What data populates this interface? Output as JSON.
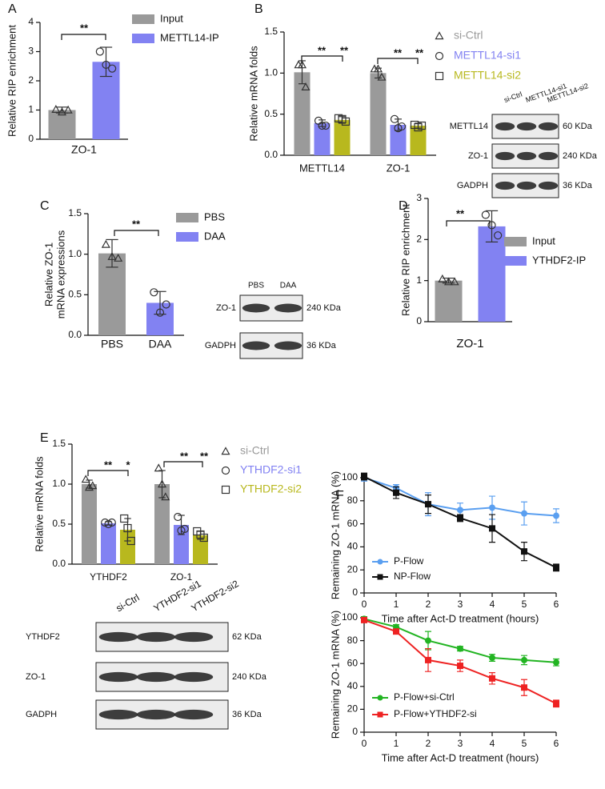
{
  "chart_data": [
    {
      "type": "bar",
      "panel": "A",
      "ylabel": "Relative RIP enrichment",
      "categories": [
        "ZO-1"
      ],
      "series": [
        {
          "name": "Input",
          "color": "#9a9a9a",
          "marker": "triangle",
          "values": [
            1.0
          ],
          "errors": [
            0.1
          ],
          "points": [
            [
              1.02,
              0.93,
              1.0
            ]
          ]
        },
        {
          "name": "METTL14-IP",
          "color": "#8282f2",
          "marker": "circle",
          "values": [
            2.65
          ],
          "errors": [
            0.5
          ],
          "points": [
            [
              3.0,
              2.55,
              2.42
            ]
          ]
        }
      ],
      "ylim": [
        0,
        4
      ],
      "yticks": [
        0,
        1,
        2,
        3,
        4
      ],
      "legend_style": "swatch",
      "significance": [
        "**"
      ]
    },
    {
      "type": "bar",
      "panel": "B",
      "ylabel": "Relative mRNA folds",
      "categories": [
        "METTL14",
        "ZO-1"
      ],
      "series": [
        {
          "name": "si-Ctrl",
          "color": "#9a9a9a",
          "marker": "triangle",
          "values": [
            1.01,
            1.0
          ],
          "errors": [
            0.14,
            0.06
          ],
          "points": [
            [
              1.1,
              1.1,
              0.83
            ],
            [
              1.05,
              1.05,
              0.95
            ]
          ]
        },
        {
          "name": "METTL14-si1",
          "color": "#8282f2",
          "marker": "circle",
          "values": [
            0.39,
            0.37
          ],
          "errors": [
            0.04,
            0.07
          ],
          "points": [
            [
              0.42,
              0.36,
              0.36
            ],
            [
              0.44,
              0.33,
              0.35
            ]
          ]
        },
        {
          "name": "METTL14-si2",
          "color": "#b8b81e",
          "marker": "square",
          "values": [
            0.43,
            0.36
          ],
          "errors": [
            0.04,
            0.03
          ],
          "points": [
            [
              0.45,
              0.44,
              0.41
            ],
            [
              0.37,
              0.34,
              0.36
            ]
          ]
        }
      ],
      "ylim": [
        0,
        1.5
      ],
      "yticks": [
        {
          "value": 0,
          "label": "0.0"
        },
        0.5,
        {
          "value": 1,
          "label": "1.0"
        },
        1.5
      ],
      "legend_style": "marker",
      "significance": [
        "**",
        "**",
        "**",
        "**"
      ],
      "blot": {
        "lanes": [
          "si-Ctrl",
          "METTL14-si1",
          "METTL14-si2"
        ],
        "rows": [
          {
            "label": "METTL14",
            "size": "60 KDa"
          },
          {
            "label": "ZO-1",
            "size": "240 KDa"
          },
          {
            "label": "GADPH",
            "size": "36 KDa"
          }
        ]
      }
    },
    {
      "type": "bar",
      "panel": "C",
      "ylabel": [
        "Relative ZO-1",
        "mRNA expressions"
      ],
      "categories": [
        "PBS",
        "DAA"
      ],
      "values": [
        1.01,
        0.4
      ],
      "errors": [
        0.17,
        0.14
      ],
      "points": [
        [
          1.12,
          0.97,
          0.95
        ],
        [
          0.53,
          0.28,
          0.38
        ]
      ],
      "colors": [
        "#9a9a9a",
        "#8282f2"
      ],
      "markers": [
        "triangle",
        "circle"
      ],
      "ylim": [
        0,
        1.5
      ],
      "yticks": [
        {
          "value": 0,
          "label": "0.0"
        },
        0.5,
        {
          "value": 1,
          "label": "1.0"
        },
        1.5
      ],
      "legend_style": "swatch",
      "significance": [
        "**"
      ],
      "blot": {
        "lanes": [
          "PBS",
          "DAA"
        ],
        "rows": [
          {
            "label": "ZO-1",
            "size": "240 KDa"
          },
          {
            "label": "GADPH",
            "size": "36 KDa"
          }
        ]
      }
    },
    {
      "type": "bar",
      "panel": "D",
      "ylabel": "Relative RIP enrichment",
      "categories": [
        "ZO-1"
      ],
      "series": [
        {
          "name": "Input",
          "color": "#9a9a9a",
          "marker": "triangle",
          "values": [
            1.0
          ],
          "errors": [
            0.06
          ],
          "points": [
            [
              1.04,
              0.97,
              0.97
            ]
          ]
        },
        {
          "name": "YTHDF2-IP",
          "color": "#8282f2",
          "marker": "circle",
          "values": [
            2.32
          ],
          "errors": [
            0.38
          ],
          "points": [
            [
              2.6,
              2.35,
              2.1
            ]
          ]
        }
      ],
      "ylim": [
        0,
        3
      ],
      "yticks": [
        0,
        1,
        2,
        3
      ],
      "legend_style": "swatch",
      "significance": [
        "**"
      ]
    },
    {
      "type": "bar",
      "panel": "E",
      "ylabel": "Relative mRNA folds",
      "categories": [
        "YTHDF2",
        "ZO-1"
      ],
      "series": [
        {
          "name": "si-Ctrl",
          "color": "#9a9a9a",
          "marker": "triangle",
          "values": [
            1.0,
            1.0
          ],
          "errors": [
            0.05,
            0.17
          ],
          "points": [
            [
              1.06,
              0.96,
              0.98
            ],
            [
              1.2,
              1.0,
              0.84
            ]
          ]
        },
        {
          "name": "YTHDF2-si1",
          "color": "#8282f2",
          "marker": "circle",
          "values": [
            0.51,
            0.49
          ],
          "errors": [
            0.02,
            0.12
          ],
          "points": [
            [
              0.52,
              0.5,
              0.52
            ],
            [
              0.59,
              0.42,
              0.44
            ]
          ]
        },
        {
          "name": "YTHDF2-si2",
          "color": "#b8b81e",
          "marker": "square",
          "values": [
            0.43,
            0.36
          ],
          "errors": [
            0.14,
            0.05
          ],
          "points": [
            [
              0.57,
              0.45,
              0.29
            ],
            [
              0.41,
              0.37,
              0.33
            ]
          ]
        }
      ],
      "ylim": [
        0,
        1.5
      ],
      "yticks": [
        {
          "value": 0,
          "label": "0.0"
        },
        0.5,
        {
          "value": 1,
          "label": "1.0"
        },
        1.5
      ],
      "legend_style": "marker",
      "significance": [
        "**",
        "*",
        "**",
        "**"
      ],
      "blot": {
        "lanes": [
          "si-Ctrl",
          "YTHDF2-si1",
          "YTHDF2-si2"
        ],
        "rows": [
          {
            "label": "YTHDF2",
            "size": "62 KDa"
          },
          {
            "label": "ZO-1",
            "size": "240 KDa"
          },
          {
            "label": "GADPH",
            "size": "36 KDa"
          }
        ]
      }
    },
    {
      "type": "line",
      "panel": "F",
      "ylabel": "Remaining ZO-1 mRNA (%)",
      "xlabel": "Time after Act-D treatment (hours)",
      "x": [
        0,
        1,
        2,
        3,
        4,
        5,
        6
      ],
      "xlim": [
        0,
        6
      ],
      "xticks": [
        0,
        1,
        2,
        3,
        4,
        5,
        6
      ],
      "ylim": [
        0,
        100
      ],
      "yticks": [
        0,
        20,
        40,
        60,
        80,
        100
      ],
      "series": [
        {
          "name": "P-Flow",
          "color": "#5a9ff0",
          "marker": "circle",
          "values": [
            100,
            91,
            77,
            72,
            74,
            69,
            67
          ],
          "errors": [
            3,
            3,
            10,
            6,
            10,
            10,
            6
          ]
        },
        {
          "name": "NP-Flow",
          "color": "#111111",
          "marker": "square",
          "values": [
            101,
            87,
            77,
            65,
            56,
            36,
            22
          ],
          "errors": [
            3,
            5,
            8,
            3,
            12,
            8,
            3
          ]
        }
      ]
    },
    {
      "type": "line",
      "ylabel": "Remaining ZO-1 mRNA (%)",
      "xlabel": "Time after Act-D treatment (hours)",
      "x": [
        0,
        1,
        2,
        3,
        4,
        5,
        6
      ],
      "xlim": [
        0,
        6
      ],
      "xticks": [
        0,
        1,
        2,
        3,
        4,
        5,
        6
      ],
      "ylim": [
        0,
        100
      ],
      "yticks": [
        0,
        20,
        40,
        60,
        80,
        100
      ],
      "series": [
        {
          "name": "P-Flow+si-Ctrl",
          "color": "#22b422",
          "marker": "circle",
          "values": [
            99,
            92,
            80,
            73,
            65,
            63,
            61
          ],
          "errors": [
            2,
            2,
            8,
            2,
            3,
            4,
            3
          ]
        },
        {
          "name": "P-Flow+YTHDF2-si",
          "color": "#ee2222",
          "marker": "square",
          "values": [
            98,
            88,
            63,
            58,
            47,
            39,
            25
          ],
          "errors": [
            2,
            2,
            10,
            5,
            5,
            7,
            3
          ]
        }
      ]
    }
  ]
}
